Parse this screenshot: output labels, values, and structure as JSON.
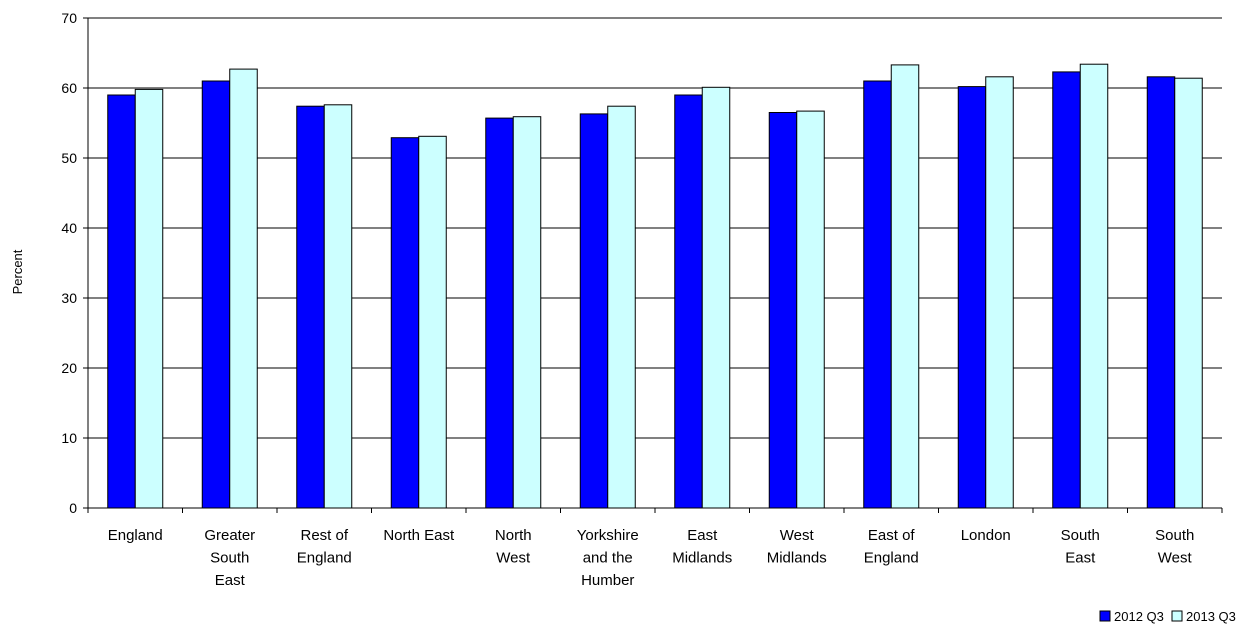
{
  "chart_data": {
    "type": "bar",
    "ylabel": "Percent",
    "ylim": [
      0,
      70
    ],
    "yticks": [
      0,
      10,
      20,
      30,
      40,
      50,
      60,
      70
    ],
    "grid": true,
    "legend_position": "bottom-right",
    "categories": [
      [
        "England"
      ],
      [
        "Greater",
        "South",
        "East"
      ],
      [
        "Rest of",
        "England"
      ],
      [
        "North East"
      ],
      [
        "North",
        "West"
      ],
      [
        "Yorkshire",
        "and the",
        "Humber"
      ],
      [
        "East",
        "Midlands"
      ],
      [
        "West",
        "Midlands"
      ],
      [
        "East of",
        "England"
      ],
      [
        "London"
      ],
      [
        "South",
        "East"
      ],
      [
        "South",
        "West"
      ]
    ],
    "series": [
      {
        "name": "2012 Q3",
        "color": "#0000ff",
        "values": [
          59.0,
          61.0,
          57.4,
          52.9,
          55.7,
          56.3,
          59.0,
          56.5,
          61.0,
          60.2,
          62.3,
          61.6
        ]
      },
      {
        "name": "2013 Q3",
        "color": "#ccffff",
        "values": [
          59.8,
          62.7,
          57.6,
          53.1,
          55.9,
          57.4,
          60.1,
          56.7,
          63.3,
          61.6,
          63.4,
          61.4
        ]
      }
    ]
  }
}
